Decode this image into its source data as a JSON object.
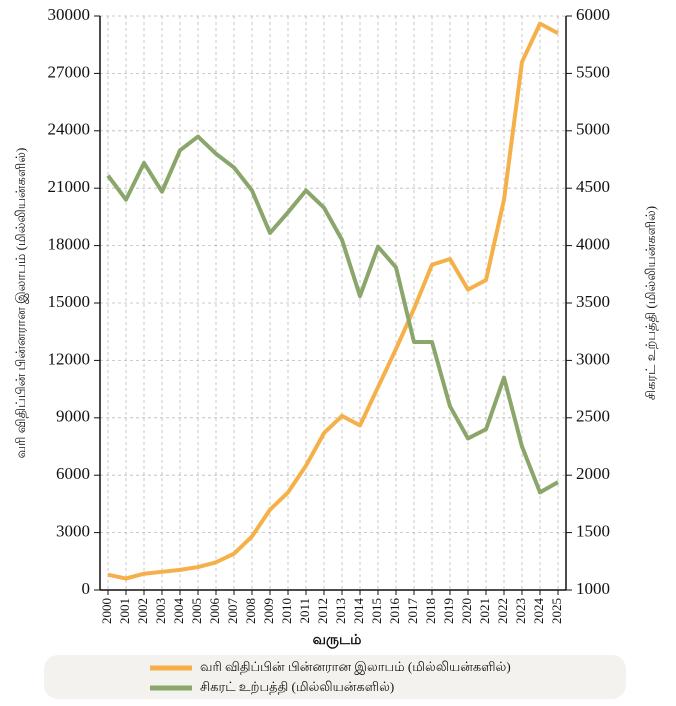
{
  "chart_data": {
    "type": "line",
    "xlabel": "வருடம்",
    "ylabel": "வரி விதிப்பின் பின்னரான இலாபம் (மில்லியன்களில்)",
    "y2label": "சிகரட் உற்பத்தி (மில்லியன்களில்)",
    "categories": [
      "2000",
      "2001",
      "2002",
      "2003",
      "2004",
      "2005",
      "2006",
      "2007",
      "2008",
      "2009",
      "2010",
      "2011",
      "2012",
      "2013",
      "2014",
      "2015",
      "2016",
      "2017",
      "2018",
      "2019",
      "2020",
      "2021",
      "2022",
      "2023",
      "2024",
      "2025"
    ],
    "series": [
      {
        "name": "வரி விதிப்பின் பின்னரான இலாபம் (மில்லியன்களில்)",
        "color": "#f5b04a",
        "values": [
          800,
          600,
          850,
          950,
          1050,
          1200,
          1450,
          1900,
          2800,
          4200,
          5100,
          6500,
          8200,
          9100,
          8600,
          10600,
          12600,
          14700,
          17000,
          17300,
          15700,
          16200,
          20400,
          27600,
          29600,
          29100
        ]
      },
      {
        "name": "சிகரட் உற்பத்தி (மில்லியன்களில்)",
        "color": "#8aa66a",
        "axis": "y2",
        "values": [
          4610,
          4400,
          4720,
          4470,
          4830,
          4950,
          4800,
          4680,
          4480,
          4110,
          4290,
          4480,
          4330,
          4050,
          3560,
          3990,
          3810,
          3160,
          3160,
          2600,
          2320,
          2400,
          2850,
          2250,
          1850,
          1940
        ]
      }
    ],
    "ylim": [
      0,
      30000
    ],
    "yticks": [
      0,
      3000,
      6000,
      9000,
      12000,
      15000,
      18000,
      21000,
      24000,
      27000,
      30000
    ],
    "y2lim": [
      1000,
      6000
    ],
    "y2ticks": [
      1000,
      1500,
      2000,
      2500,
      3000,
      3500,
      4000,
      4500,
      5000,
      5500,
      6000
    ],
    "grid": true
  }
}
